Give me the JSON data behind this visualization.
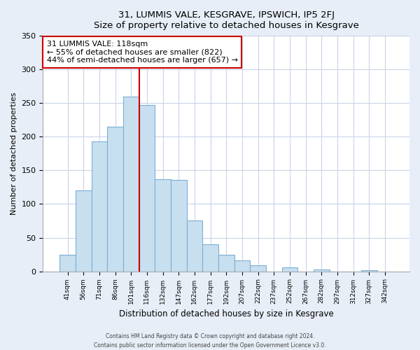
{
  "title": "31, LUMMIS VALE, KESGRAVE, IPSWICH, IP5 2FJ",
  "subtitle": "Size of property relative to detached houses in Kesgrave",
  "xlabel": "Distribution of detached houses by size in Kesgrave",
  "ylabel": "Number of detached properties",
  "bar_labels": [
    "41sqm",
    "56sqm",
    "71sqm",
    "86sqm",
    "101sqm",
    "116sqm",
    "132sqm",
    "147sqm",
    "162sqm",
    "177sqm",
    "192sqm",
    "207sqm",
    "222sqm",
    "237sqm",
    "252sqm",
    "267sqm",
    "282sqm",
    "297sqm",
    "312sqm",
    "327sqm",
    "342sqm"
  ],
  "bar_values": [
    25,
    120,
    193,
    215,
    260,
    247,
    137,
    136,
    76,
    40,
    25,
    16,
    9,
    0,
    6,
    0,
    3,
    0,
    0,
    2,
    0
  ],
  "bar_color": "#c8dff0",
  "bar_edge_color": "#7bafd4",
  "vline_index": 5,
  "annotation_title": "31 LUMMIS VALE: 118sqm",
  "annotation_line1": "← 55% of detached houses are smaller (822)",
  "annotation_line2": "44% of semi-detached houses are larger (657) →",
  "vline_color": "#cc0000",
  "ylim": [
    0,
    350
  ],
  "yticks": [
    0,
    50,
    100,
    150,
    200,
    250,
    300,
    350
  ],
  "footer1": "Contains HM Land Registry data © Crown copyright and database right 2024.",
  "footer2": "Contains public sector information licensed under the Open Government Licence v3.0.",
  "bg_color": "#e8eef8",
  "plot_bg_color": "#ffffff",
  "grid_color": "#c8d4e8"
}
